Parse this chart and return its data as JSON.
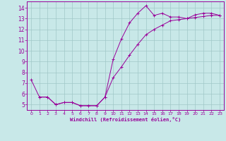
{
  "xlabel": "Windchill (Refroidissement éolien,°C)",
  "background_color": "#c8e8e8",
  "line_color": "#990099",
  "grid_color": "#a0c8c8",
  "xlim": [
    -0.5,
    23.5
  ],
  "ylim": [
    4.5,
    14.6
  ],
  "xticks": [
    0,
    1,
    2,
    3,
    4,
    5,
    6,
    7,
    8,
    9,
    10,
    11,
    12,
    13,
    14,
    15,
    16,
    17,
    18,
    19,
    20,
    21,
    22,
    23
  ],
  "yticks": [
    5,
    6,
    7,
    8,
    9,
    10,
    11,
    12,
    13,
    14
  ],
  "curve1_x": [
    0,
    1,
    2,
    3,
    4,
    5,
    6,
    7,
    8,
    9,
    10,
    11,
    12,
    13,
    14,
    15,
    16,
    17,
    18,
    19,
    20,
    21,
    22,
    23
  ],
  "curve1_y": [
    7.3,
    5.7,
    5.7,
    5.0,
    5.2,
    5.2,
    4.9,
    4.9,
    4.9,
    5.7,
    9.2,
    11.1,
    12.6,
    13.5,
    14.2,
    13.3,
    13.5,
    13.15,
    13.15,
    13.0,
    13.35,
    13.5,
    13.5,
    13.3
  ],
  "curve2_x": [
    1,
    2,
    3,
    4,
    5,
    6,
    7,
    8,
    9,
    10,
    11,
    12,
    13,
    14,
    15,
    16,
    17,
    18,
    19,
    20,
    21,
    22,
    23
  ],
  "curve2_y": [
    5.7,
    5.7,
    5.0,
    5.2,
    5.2,
    4.9,
    4.9,
    4.9,
    5.7,
    7.5,
    8.5,
    9.6,
    10.6,
    11.5,
    12.0,
    12.4,
    12.8,
    12.9,
    13.0,
    13.1,
    13.2,
    13.3,
    13.3
  ]
}
